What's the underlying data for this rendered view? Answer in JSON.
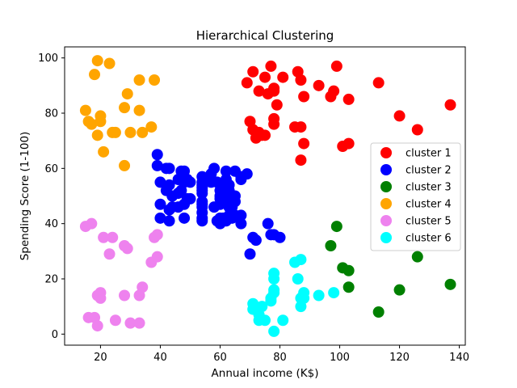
{
  "chart_data": {
    "type": "scatter",
    "title": "Hierarchical Clustering",
    "xlabel": "Annual income (K$)",
    "ylabel": "Spending Score (1-100)",
    "xlim": [
      8,
      142
    ],
    "ylim": [
      -4,
      104
    ],
    "xticks": [
      20,
      40,
      60,
      80,
      100,
      120,
      140
    ],
    "yticks": [
      0,
      20,
      40,
      60,
      80,
      100
    ],
    "grid": false,
    "legend_position": "center-right",
    "series": [
      {
        "name": "cluster 1",
        "color": "#ff0000",
        "points": [
          [
            69,
            91
          ],
          [
            71,
            95
          ],
          [
            73,
            88
          ],
          [
            75,
            93
          ],
          [
            76,
            87
          ],
          [
            77,
            97
          ],
          [
            78,
            88
          ],
          [
            78,
            89
          ],
          [
            79,
            83
          ],
          [
            81,
            93
          ],
          [
            86,
            95
          ],
          [
            87,
            92
          ],
          [
            88,
            86
          ],
          [
            93,
            90
          ],
          [
            97,
            86
          ],
          [
            98,
            88
          ],
          [
            99,
            97
          ],
          [
            103,
            85
          ],
          [
            113,
            91
          ],
          [
            120,
            79
          ],
          [
            126,
            74
          ],
          [
            137,
            83
          ],
          [
            70,
            77
          ],
          [
            71,
            74
          ],
          [
            72,
            71
          ],
          [
            73,
            73
          ],
          [
            74,
            72
          ],
          [
            75,
            72
          ],
          [
            78,
            76
          ],
          [
            78,
            78
          ],
          [
            85,
            75
          ],
          [
            87,
            75
          ],
          [
            87,
            63
          ],
          [
            88,
            69
          ],
          [
            101,
            68
          ],
          [
            103,
            69
          ]
        ]
      },
      {
        "name": "cluster 2",
        "color": "#0000ff",
        "points": [
          [
            39,
            65
          ],
          [
            39,
            61
          ],
          [
            40,
            55
          ],
          [
            40,
            47
          ],
          [
            40,
            42
          ],
          [
            42,
            52
          ],
          [
            42,
            60
          ],
          [
            43,
            60
          ],
          [
            43,
            54
          ],
          [
            43,
            45
          ],
          [
            43,
            41
          ],
          [
            44,
            50
          ],
          [
            44,
            46
          ],
          [
            46,
            51
          ],
          [
            46,
            46
          ],
          [
            46,
            56
          ],
          [
            47,
            52
          ],
          [
            47,
            59
          ],
          [
            48,
            47
          ],
          [
            48,
            55
          ],
          [
            48,
            42
          ],
          [
            48,
            59
          ],
          [
            49,
            49
          ],
          [
            49,
            56
          ],
          [
            50,
            55
          ],
          [
            50,
            49
          ],
          [
            54,
            47
          ],
          [
            54,
            54
          ],
          [
            54,
            53
          ],
          [
            54,
            48
          ],
          [
            54,
            52
          ],
          [
            54,
            42
          ],
          [
            54,
            51
          ],
          [
            54,
            55
          ],
          [
            54,
            41
          ],
          [
            54,
            44
          ],
          [
            54,
            57
          ],
          [
            54,
            46
          ],
          [
            57,
            58
          ],
          [
            57,
            55
          ],
          [
            58,
            60
          ],
          [
            58,
            46
          ],
          [
            59,
            55
          ],
          [
            59,
            41
          ],
          [
            60,
            49
          ],
          [
            60,
            40
          ],
          [
            60,
            42
          ],
          [
            60,
            52
          ],
          [
            60,
            47
          ],
          [
            60,
            50
          ],
          [
            61,
            42
          ],
          [
            61,
            49
          ],
          [
            62,
            41
          ],
          [
            62,
            48
          ],
          [
            62,
            59
          ],
          [
            62,
            55
          ],
          [
            62,
            56
          ],
          [
            62,
            42
          ],
          [
            63,
            50
          ],
          [
            63,
            46
          ],
          [
            63,
            43
          ],
          [
            63,
            48
          ],
          [
            63,
            52
          ],
          [
            63,
            54
          ],
          [
            64,
            42
          ],
          [
            64,
            46
          ],
          [
            65,
            48
          ],
          [
            65,
            50
          ],
          [
            65,
            43
          ],
          [
            65,
            59
          ],
          [
            67,
            43
          ],
          [
            67,
            57
          ],
          [
            67,
            56
          ],
          [
            67,
            40
          ],
          [
            69,
            58
          ],
          [
            70,
            29
          ],
          [
            71,
            35
          ],
          [
            72,
            34
          ],
          [
            76,
            40
          ],
          [
            77,
            36
          ],
          [
            78,
            36
          ],
          [
            80,
            35
          ]
        ]
      },
      {
        "name": "cluster 3",
        "color": "#008000",
        "points": [
          [
            97,
            32
          ],
          [
            99,
            39
          ],
          [
            101,
            24
          ],
          [
            103,
            17
          ],
          [
            103,
            23
          ],
          [
            113,
            8
          ],
          [
            120,
            16
          ],
          [
            126,
            28
          ],
          [
            137,
            18
          ]
        ]
      },
      {
        "name": "cluster 4",
        "color": "#ffa500",
        "points": [
          [
            15,
            81
          ],
          [
            16,
            77
          ],
          [
            17,
            76
          ],
          [
            18,
            94
          ],
          [
            19,
            99
          ],
          [
            19,
            72
          ],
          [
            20,
            77
          ],
          [
            20,
            79
          ],
          [
            21,
            66
          ],
          [
            23,
            98
          ],
          [
            24,
            73
          ],
          [
            25,
            73
          ],
          [
            28,
            82
          ],
          [
            28,
            61
          ],
          [
            29,
            87
          ],
          [
            30,
            73
          ],
          [
            33,
            81
          ],
          [
            33,
            92
          ],
          [
            34,
            73
          ],
          [
            37,
            75
          ],
          [
            38,
            92
          ]
        ]
      },
      {
        "name": "cluster 5",
        "color": "#ee82ee",
        "points": [
          [
            15,
            39
          ],
          [
            16,
            6
          ],
          [
            17,
            40
          ],
          [
            18,
            6
          ],
          [
            19,
            3
          ],
          [
            19,
            14
          ],
          [
            20,
            15
          ],
          [
            20,
            13
          ],
          [
            21,
            35
          ],
          [
            23,
            29
          ],
          [
            24,
            35
          ],
          [
            25,
            5
          ],
          [
            28,
            14
          ],
          [
            28,
            32
          ],
          [
            29,
            31
          ],
          [
            30,
            4
          ],
          [
            33,
            4
          ],
          [
            33,
            14
          ],
          [
            34,
            17
          ],
          [
            37,
            26
          ],
          [
            38,
            35
          ],
          [
            39,
            36
          ],
          [
            39,
            28
          ]
        ]
      },
      {
        "name": "cluster 6",
        "color": "#00ffff",
        "points": [
          [
            71,
            11
          ],
          [
            71,
            9
          ],
          [
            73,
            5
          ],
          [
            73,
            7
          ],
          [
            74,
            10
          ],
          [
            75,
            5
          ],
          [
            77,
            12
          ],
          [
            77,
            13
          ],
          [
            78,
            15
          ],
          [
            78,
            20
          ],
          [
            78,
            16
          ],
          [
            78,
            1
          ],
          [
            78,
            22
          ],
          [
            81,
            5
          ],
          [
            85,
            26
          ],
          [
            86,
            20
          ],
          [
            87,
            27
          ],
          [
            87,
            13
          ],
          [
            87,
            10
          ],
          [
            88,
            15
          ],
          [
            88,
            13
          ],
          [
            93,
            14
          ],
          [
            98,
            15
          ]
        ]
      }
    ]
  }
}
